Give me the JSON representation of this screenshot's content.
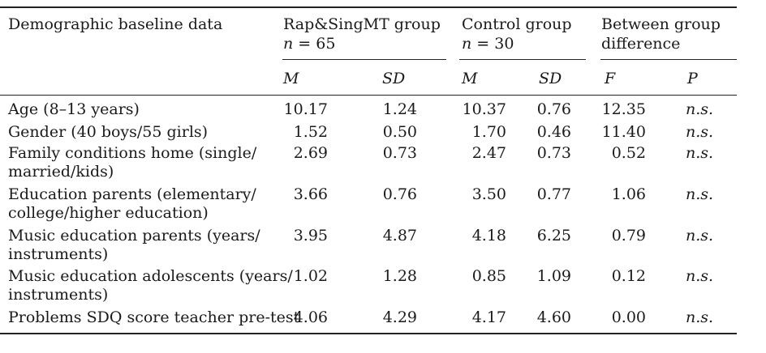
{
  "table": {
    "header": {
      "col0": "Demographic baseline data",
      "group1": {
        "name": "Rap&SingMT group",
        "n_prefix": "n",
        "n_value": "= 65"
      },
      "group2": {
        "name": "Control group",
        "n_prefix": "n",
        "n_value": "= 30"
      },
      "group3": {
        "line1": "Between group",
        "line2": "difference"
      },
      "sub": {
        "m1": "M",
        "sd1": "SD",
        "m2": "M",
        "sd2": "SD",
        "f": "F",
        "p": "P"
      }
    },
    "rows": [
      {
        "label1": "Age (8–13 years)",
        "label2": "",
        "m1": "10.17",
        "sd1": "1.24",
        "m2": "10.37",
        "sd2": "0.76",
        "f": "12.35",
        "p": "n.s."
      },
      {
        "label1": "Gender (40 boys/55 girls)",
        "label2": "",
        "m1": "1.52",
        "sd1": "0.50",
        "m2": "1.70",
        "sd2": "0.46",
        "f": "11.40",
        "p": "n.s."
      },
      {
        "label1": "Family conditions home (single/",
        "label2": "married/kids)",
        "m1": "2.69",
        "sd1": "0.73",
        "m2": "2.47",
        "sd2": "0.73",
        "f": "0.52",
        "p": "n.s."
      },
      {
        "label1": "Education parents (elementary/",
        "label2": "college/higher education)",
        "m1": "3.66",
        "sd1": "0.76",
        "m2": "3.50",
        "sd2": "0.77",
        "f": "1.06",
        "p": "n.s."
      },
      {
        "label1": "Music education parents (years/",
        "label2": "instruments)",
        "m1": "3.95",
        "sd1": "4.87",
        "m2": "4.18",
        "sd2": "6.25",
        "f": "0.79",
        "p": "n.s."
      },
      {
        "label1": "Music education adolescents (years/",
        "label2": "instruments)",
        "m1": "1.02",
        "sd1": "1.28",
        "m2": "0.85",
        "sd2": "1.09",
        "f": "0.12",
        "p": "n.s."
      },
      {
        "label1": "Problems SDQ score teacher pre-test",
        "label2": "",
        "m1": "4.06",
        "sd1": "4.29",
        "m2": "4.17",
        "sd2": "4.60",
        "f": "0.00",
        "p": "n.s."
      }
    ]
  }
}
